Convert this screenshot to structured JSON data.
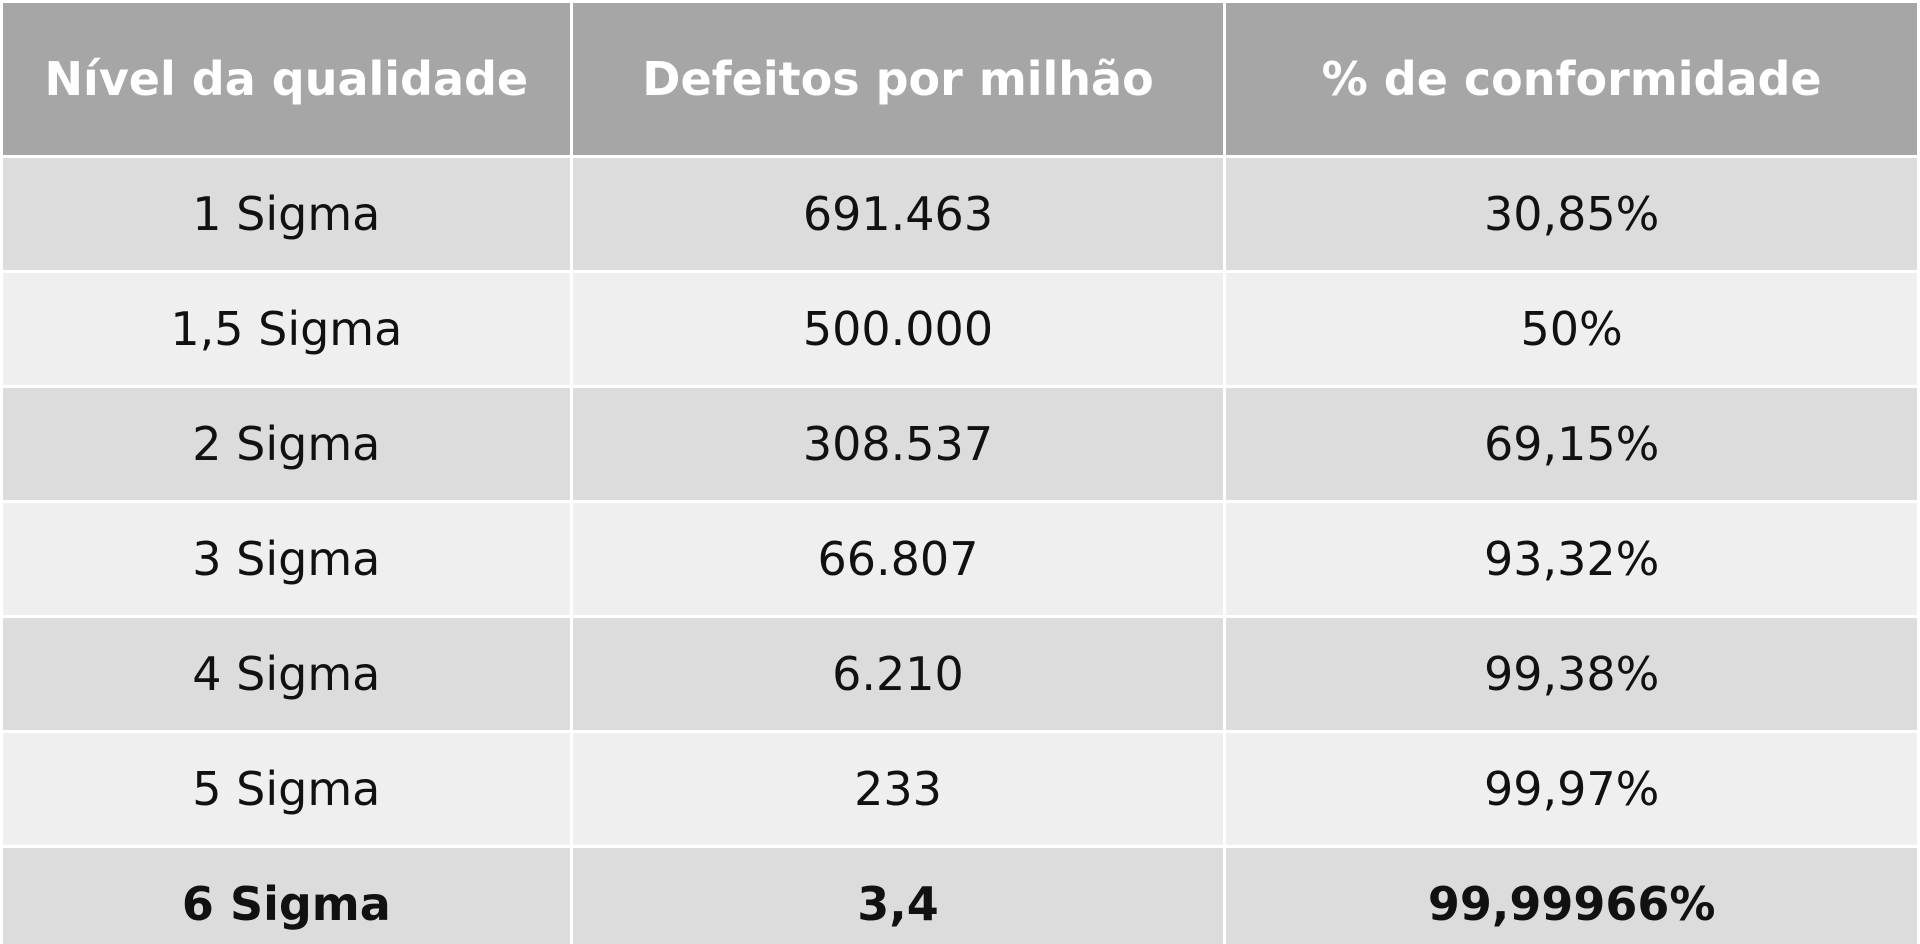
{
  "table": {
    "columns": [
      "Nível da qualidade",
      "Defeitos por milhão",
      "% de conformidade"
    ],
    "rows": [
      [
        "1 Sigma",
        "691.463",
        "30,85%"
      ],
      [
        "1,5 Sigma",
        "500.000",
        "50%"
      ],
      [
        "2 Sigma",
        "308.537",
        "69,15%"
      ],
      [
        "3 Sigma",
        "66.807",
        "93,32%"
      ],
      [
        "4 Sigma",
        "6.210",
        "99,38%"
      ],
      [
        "5 Sigma",
        "233",
        "99,97%"
      ],
      [
        "6 Sigma",
        "3,4",
        "99,99966%"
      ]
    ]
  }
}
